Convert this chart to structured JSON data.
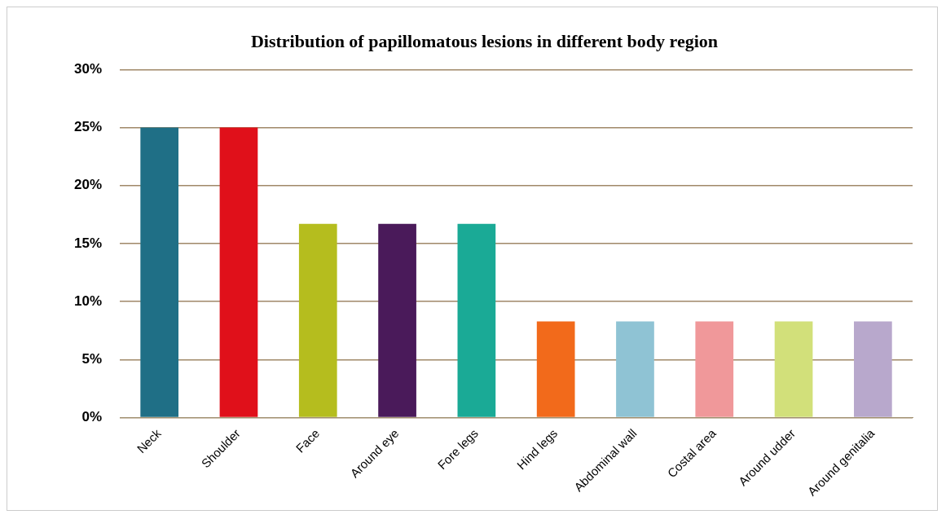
{
  "chart_data": {
    "type": "bar",
    "title": "Distribution of papillomatous lesions in different body region",
    "categories": [
      "Neck",
      "Shoulder",
      "Face",
      "Around eye",
      "Fore legs",
      "Hind legs",
      "Abdominal wall",
      "Costal area",
      "Around udder",
      "Around genitalia"
    ],
    "values": [
      25,
      25,
      16.7,
      16.7,
      16.7,
      8.3,
      8.3,
      8.3,
      8.3,
      8.3
    ],
    "colors": [
      "#1f6f86",
      "#e0101a",
      "#b5bd1e",
      "#4a1a5a",
      "#1aaa96",
      "#f26a1b",
      "#8fc3d4",
      "#f0989a",
      "#d2e07a",
      "#b8a8cc"
    ],
    "ylim": [
      0,
      30
    ],
    "yticks": [
      {
        "value": 0,
        "label": "0%"
      },
      {
        "value": 5,
        "label": "5%"
      },
      {
        "value": 10,
        "label": "10%"
      },
      {
        "value": 15,
        "label": "15%"
      },
      {
        "value": 20,
        "label": "20%"
      },
      {
        "value": 25,
        "label": "25%"
      },
      {
        "value": 30,
        "label": "30%"
      }
    ],
    "grid": "y",
    "legend": false
  }
}
